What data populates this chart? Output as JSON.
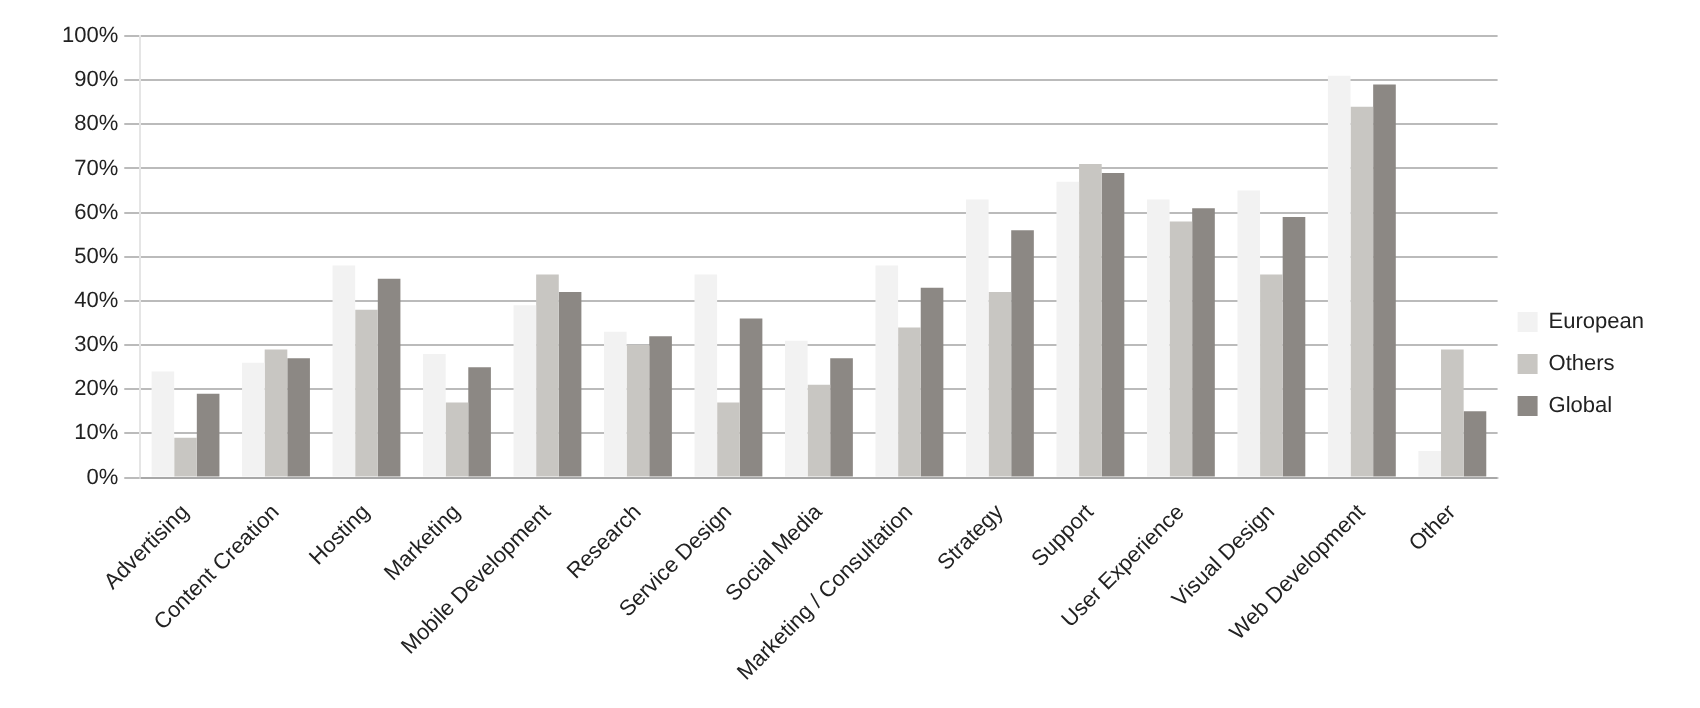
{
  "chart_data": {
    "type": "bar",
    "categories": [
      "Advertising",
      "Content Creation",
      "Hosting",
      "Marketing",
      "Mobile Development",
      "Research",
      "Service Design",
      "Social Media",
      "Marketing / Consultation",
      "Strategy",
      "Support",
      "User Experience",
      "Visual Design",
      "Web Development",
      "Other"
    ],
    "series": [
      {
        "name": "European",
        "color": "#f2f2f2",
        "values": [
          24,
          26,
          48,
          28,
          39,
          33,
          46,
          31,
          48,
          63,
          67,
          63,
          65,
          91,
          6
        ]
      },
      {
        "name": "Others",
        "color": "#c8c6c2",
        "values": [
          9,
          29,
          38,
          17,
          46,
          30,
          17,
          21,
          34,
          42,
          71,
          58,
          46,
          84,
          29
        ]
      },
      {
        "name": "Global",
        "color": "#8c8884",
        "values": [
          19,
          27,
          45,
          25,
          42,
          32,
          36,
          27,
          43,
          56,
          69,
          61,
          59,
          89,
          15
        ]
      }
    ],
    "ylim": [
      0,
      100
    ],
    "yticks": [
      {
        "value": 0,
        "label": "0%"
      },
      {
        "value": 10,
        "label": "10%"
      },
      {
        "value": 20,
        "label": "20%"
      },
      {
        "value": 30,
        "label": "30%"
      },
      {
        "value": 40,
        "label": "40%"
      },
      {
        "value": 50,
        "label": "50%"
      },
      {
        "value": 60,
        "label": "60%"
      },
      {
        "value": 70,
        "label": "70%"
      },
      {
        "value": 80,
        "label": "80%"
      },
      {
        "value": 90,
        "label": "90%"
      },
      {
        "value": 100,
        "label": "100%"
      }
    ],
    "grid": "y",
    "legend": "right"
  }
}
